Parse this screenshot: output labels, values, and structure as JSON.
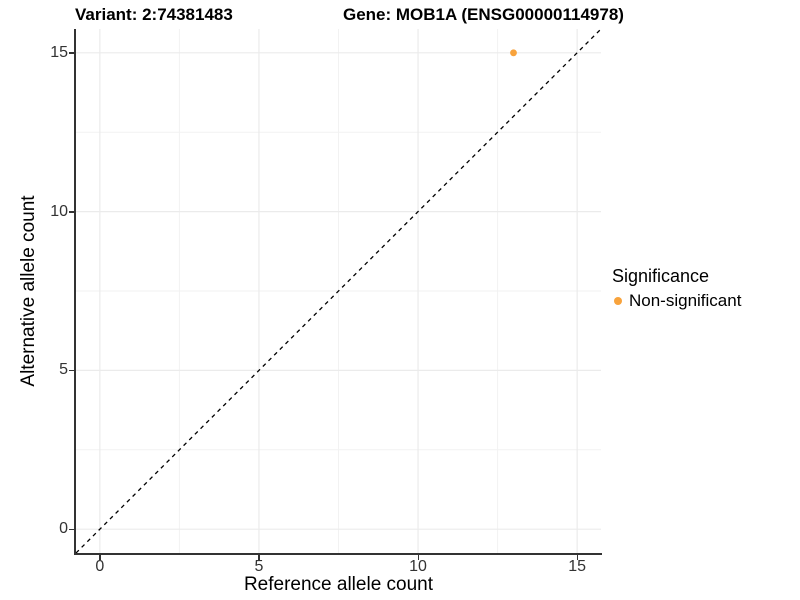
{
  "header": {
    "variant_title": "Variant: 2:74381483",
    "gene_title": "Gene: MOB1A (ENSG00000114978)"
  },
  "chart_data": {
    "type": "scatter",
    "title": "Variant: 2:74381483   Gene: MOB1A (ENSG00000114978)",
    "xlabel": "Reference allele count",
    "ylabel": "Alternative allele count",
    "xlim": [
      -0.75,
      15.75
    ],
    "ylim": [
      -0.75,
      15.75
    ],
    "xticks": [
      0,
      5,
      10,
      15
    ],
    "yticks": [
      0,
      5,
      10,
      15
    ],
    "xticks_minor": [
      2.5,
      7.5,
      12.5
    ],
    "yticks_minor": [
      2.5,
      7.5,
      12.5
    ],
    "grid": true,
    "series": [
      {
        "name": "Non-significant",
        "color": "#F8A33C",
        "points": [
          {
            "x": 13,
            "y": 15
          }
        ]
      }
    ],
    "reference_line": {
      "type": "identity y=x",
      "style": "dashed",
      "color": "#000000"
    },
    "legend": {
      "title": "Significance",
      "position": "right",
      "entries": [
        {
          "label": "Non-significant",
          "color": "#F8A33C"
        }
      ]
    }
  },
  "colors": {
    "background": "#FFFFFF",
    "grid_major": "#EBEBEB",
    "grid_minor": "#F2F2F2",
    "axis_line": "#333333",
    "tick_label": "#333333",
    "dashed_line": "#000000"
  }
}
